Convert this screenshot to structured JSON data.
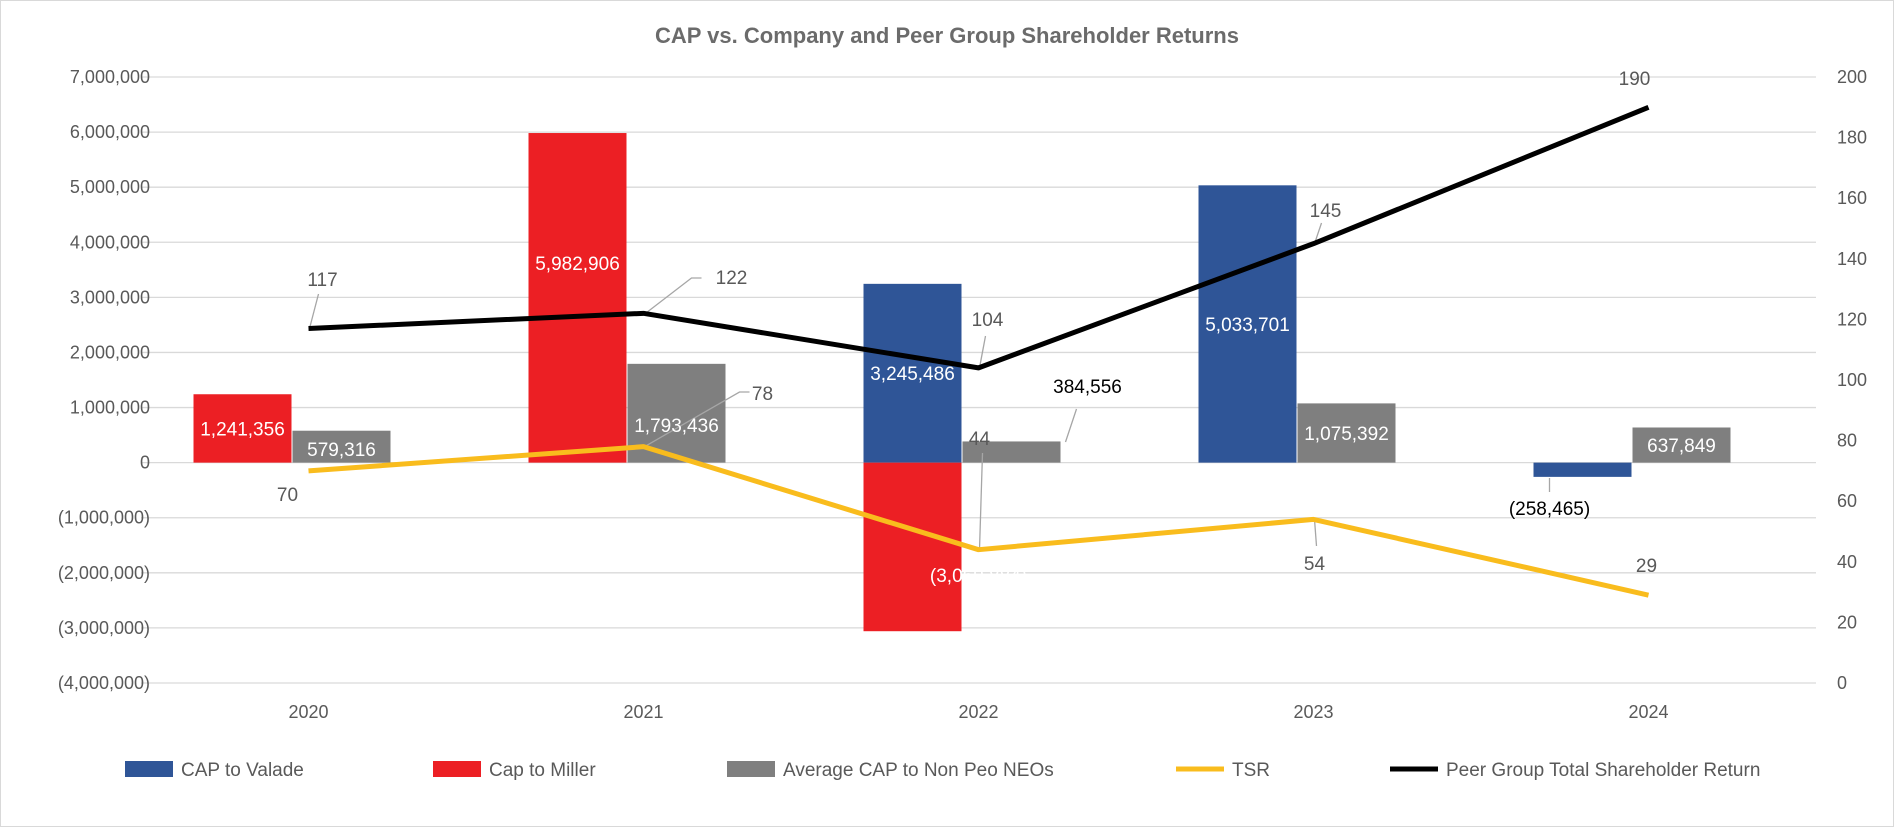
{
  "chart_data": {
    "type": "bar",
    "title": "CAP vs. Company and Peer Group Shareholder Returns",
    "categories": [
      "2020",
      "2021",
      "2022",
      "2023",
      "2024"
    ],
    "left_axis": {
      "ylim": [
        -4000000,
        7000000
      ],
      "step": 1000000,
      "tick_labels": [
        "(4,000,000)",
        "(3,000,000)",
        "(2,000,000)",
        "(1,000,000)",
        "0",
        "1,000,000",
        "2,000,000",
        "3,000,000",
        "4,000,000",
        "5,000,000",
        "6,000,000",
        "7,000,000"
      ]
    },
    "right_axis": {
      "ylim": [
        0,
        200
      ],
      "step": 20,
      "tick_labels": [
        "0",
        "20",
        "40",
        "60",
        "80",
        "100",
        "120",
        "140",
        "160",
        "180",
        "200"
      ]
    },
    "grid": true,
    "legend_position": "bottom",
    "series": [
      {
        "name": "CAP to Valade",
        "kind": "bar",
        "axis": "left",
        "color": "#2f5597",
        "values": [
          null,
          null,
          3245486,
          5033701,
          -258465
        ],
        "labels": [
          "",
          "",
          "3,245,486",
          "5,033,701",
          "(258,465)"
        ]
      },
      {
        "name": "Cap to Miller",
        "kind": "bar",
        "axis": "left",
        "color": "#ec1f24",
        "values": [
          1241356,
          5982906,
          -3059884,
          null,
          null
        ],
        "labels": [
          "1,241,356",
          "5,982,906",
          "(3,059,884)",
          "",
          ""
        ]
      },
      {
        "name": "Average CAP to Non Peo NEOs",
        "kind": "bar",
        "axis": "left",
        "color": "#7f7f7f",
        "values": [
          579316,
          1793436,
          384556,
          1075392,
          637849
        ],
        "labels": [
          "579,316",
          "1,793,436",
          "384,556",
          "1,075,392",
          "637,849"
        ]
      },
      {
        "name": "TSR",
        "kind": "line",
        "axis": "right",
        "color": "#f9bc1d",
        "values": [
          70,
          78,
          44,
          54,
          29
        ],
        "labels": [
          "70",
          "78",
          "44",
          "54",
          "29"
        ]
      },
      {
        "name": "Peer Group Total Shareholder Return",
        "kind": "line",
        "axis": "right",
        "color": "#000000",
        "values": [
          117,
          122,
          104,
          145,
          190
        ],
        "labels": [
          "117",
          "122",
          "104",
          "145",
          "190"
        ]
      }
    ]
  }
}
